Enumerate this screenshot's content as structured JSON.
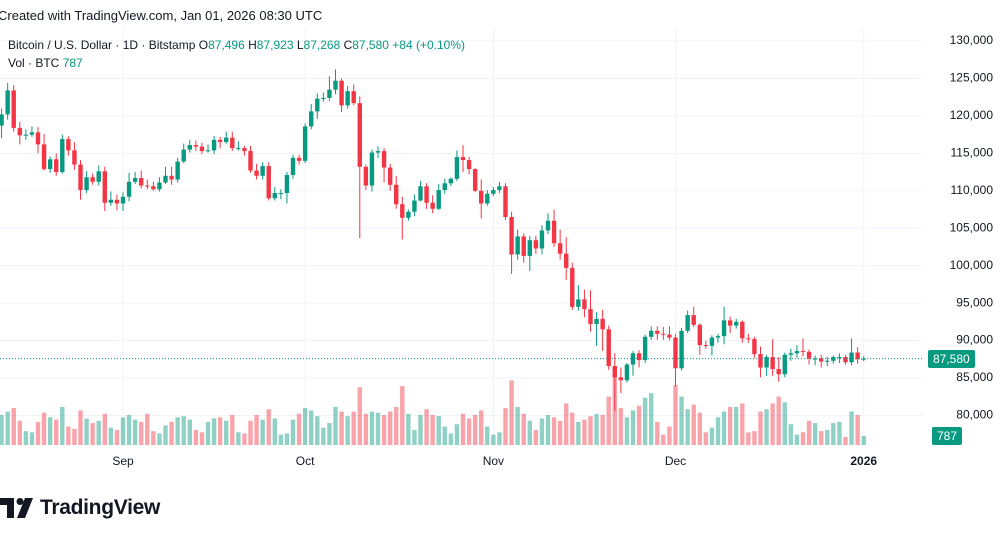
{
  "header": {
    "watermark": "Created with TradingView.com, Jan 01, 2026 08:30 UTC"
  },
  "logo": {
    "text": "TradingView"
  },
  "chart_data": {
    "type": "candlestick",
    "title": "Bitcoin / U.S. Dollar · 1D · Bitstamp",
    "ohlc": [
      {
        "prefix": "O",
        "value": 87496,
        "label": "87,496"
      },
      {
        "prefix": "H",
        "value": 87923,
        "label": "87,923"
      },
      {
        "prefix": "L",
        "value": 87268,
        "label": "87,268"
      },
      {
        "prefix": "C",
        "value": 87580,
        "label": "87,580"
      }
    ],
    "change": {
      "value": 84,
      "label": "+84"
    },
    "change_percent": {
      "value": 0.1,
      "label": "(+0.10%)"
    },
    "volume_label": "Vol · BTC",
    "last_volume": 787,
    "last_price": {
      "value": 87580,
      "label": "87,580"
    },
    "up_color": "#089981",
    "down_color": "#f23645",
    "grid": true,
    "open": [
      118700,
      120200,
      123400,
      118400,
      117400,
      117500,
      117800,
      116200,
      112900,
      114200,
      112500,
      116900,
      115400,
      113500,
      110100,
      111800,
      111200,
      112600,
      108400,
      108800,
      108300,
      109200,
      111200,
      111700,
      110700,
      110600,
      110200,
      111100,
      112000,
      111500,
      113900,
      115500,
      116100,
      115900,
      115300,
      115400,
      116800,
      116500,
      117100,
      115700,
      115700,
      115300,
      112700,
      112000,
      113300,
      109000,
      109700,
      109700,
      112100,
      114400,
      114000,
      118600,
      120600,
      122300,
      122400,
      123500,
      124700,
      121400,
      123300,
      121700,
      113200,
      110700,
      115100,
      115300,
      113100,
      110800,
      108200,
      106400,
      107200,
      108700,
      110600,
      108400,
      107600,
      110100,
      111000,
      111600,
      114500,
      114100,
      112900,
      110000,
      108300,
      109600,
      110100,
      110600,
      106500,
      101500,
      103900,
      101300,
      103400,
      102300,
      104700,
      106000,
      103000,
      101600,
      99700,
      94500,
      95500,
      94200,
      92200,
      92900,
      91500,
      86600,
      85100,
      84700,
      86800,
      88300,
      87400,
      90500,
      91300,
      90900,
      90800,
      90400,
      86300,
      91300,
      93400,
      92100,
      89400,
      89300,
      90400,
      90600,
      92700,
      92000,
      92500,
      90300,
      90200,
      88200,
      86400,
      87800,
      86200,
      85500,
      88100,
      88300,
      88600,
      88500,
      87600,
      87600,
      87200,
      87300,
      87800,
      87800,
      87100,
      88400,
      87496
    ],
    "high": [
      121000,
      124400,
      124100,
      119200,
      118200,
      118600,
      118500,
      117600,
      114600,
      115000,
      117500,
      117300,
      116500,
      114100,
      112600,
      112300,
      113400,
      113200,
      109900,
      109500,
      109800,
      112400,
      112500,
      112700,
      111500,
      111200,
      111800,
      113200,
      113200,
      114400,
      116300,
      116800,
      116700,
      116400,
      116200,
      117300,
      117200,
      117900,
      117900,
      116600,
      116000,
      116000,
      113600,
      113800,
      113800,
      110500,
      110200,
      112500,
      114800,
      114800,
      119000,
      121600,
      123000,
      123100,
      125300,
      126200,
      125000,
      124000,
      124200,
      122600,
      113500,
      115500,
      115900,
      115700,
      113600,
      112000,
      109200,
      107500,
      109500,
      111300,
      111000,
      109400,
      110900,
      111600,
      111800,
      115400,
      116100,
      114500,
      113000,
      111500,
      110100,
      110500,
      111200,
      111000,
      107200,
      104800,
      104300,
      104000,
      104000,
      105400,
      107000,
      107500,
      104800,
      103800,
      100400,
      97400,
      96800,
      96700,
      93800,
      94100,
      92000,
      88300,
      86400,
      87000,
      88600,
      88700,
      90800,
      91900,
      91900,
      91800,
      91900,
      90900,
      91700,
      94000,
      94500,
      92300,
      90000,
      90700,
      90900,
      94500,
      93200,
      92900,
      92700,
      90900,
      90500,
      89200,
      88100,
      90200,
      87800,
      88400,
      88900,
      89400,
      90300,
      88800,
      88000,
      88100,
      87800,
      88000,
      88300,
      88100,
      90300,
      89100,
      87923
    ],
    "low": [
      117000,
      119500,
      117900,
      116200,
      116800,
      117200,
      115000,
      112700,
      112400,
      112000,
      112300,
      114700,
      112800,
      108800,
      109700,
      110800,
      110700,
      107300,
      108000,
      107400,
      107300,
      108600,
      110900,
      110300,
      110200,
      110000,
      109900,
      110900,
      110800,
      111100,
      113700,
      115100,
      115300,
      114900,
      115100,
      114900,
      115700,
      116300,
      115300,
      115400,
      114700,
      112400,
      111500,
      111500,
      108700,
      108700,
      108900,
      108300,
      111600,
      113500,
      113700,
      118200,
      119600,
      121900,
      122000,
      122900,
      120500,
      121000,
      121400,
      103700,
      110100,
      109900,
      114400,
      111100,
      110000,
      107600,
      103500,
      106000,
      106600,
      108600,
      107600,
      107000,
      107400,
      109600,
      110600,
      111300,
      112500,
      112200,
      109800,
      106300,
      108000,
      109300,
      109700,
      106100,
      98900,
      100800,
      100400,
      99300,
      101600,
      101500,
      104200,
      102500,
      100800,
      98100,
      94100,
      94000,
      93100,
      91200,
      89300,
      88600,
      86100,
      80600,
      83000,
      84400,
      85300,
      86400,
      87000,
      90100,
      90100,
      90100,
      90000,
      83900,
      86000,
      91000,
      91800,
      88100,
      88900,
      88000,
      89700,
      89500,
      91000,
      91600,
      89700,
      89700,
      87700,
      85100,
      85300,
      85300,
      84500,
      85100,
      87300,
      87700,
      87900,
      86800,
      86700,
      86400,
      86600,
      86900,
      87000,
      86800,
      86700,
      86900,
      87268
    ],
    "close": [
      120200,
      123400,
      118400,
      117400,
      117500,
      117800,
      116200,
      112900,
      114200,
      112500,
      116900,
      115400,
      113500,
      110100,
      111800,
      111200,
      112600,
      108400,
      108800,
      108300,
      109200,
      111200,
      111700,
      110700,
      110600,
      110200,
      111100,
      112000,
      111500,
      113900,
      115500,
      116100,
      115900,
      115300,
      115400,
      116800,
      116500,
      117100,
      115700,
      115700,
      115300,
      112700,
      112000,
      113300,
      109000,
      109700,
      109700,
      112100,
      114400,
      114000,
      118600,
      120600,
      122300,
      122400,
      123500,
      124700,
      121400,
      123300,
      121700,
      113200,
      110700,
      115100,
      115300,
      113100,
      110800,
      108200,
      106400,
      107200,
      108700,
      110600,
      108400,
      107600,
      110100,
      111000,
      111600,
      114500,
      114100,
      112900,
      110000,
      108300,
      109600,
      110100,
      110600,
      106500,
      101500,
      103900,
      101300,
      103400,
      102300,
      104700,
      106000,
      103000,
      101600,
      99700,
      94500,
      95500,
      94200,
      92200,
      92900,
      91500,
      86600,
      85100,
      84700,
      86800,
      88300,
      87400,
      90500,
      91300,
      90900,
      90800,
      90400,
      86300,
      91300,
      93400,
      92100,
      89400,
      89300,
      90400,
      90600,
      92700,
      92000,
      92500,
      90300,
      90200,
      88200,
      86400,
      87800,
      86200,
      85500,
      88100,
      88300,
      88600,
      88500,
      87600,
      87600,
      87200,
      87300,
      87800,
      87800,
      87100,
      88400,
      87496,
      87580
    ],
    "volume": [
      2600,
      2900,
      3200,
      2100,
      1200,
      1100,
      2000,
      2800,
      2400,
      2200,
      3300,
      1600,
      1400,
      3000,
      2300,
      1900,
      2100,
      2700,
      1500,
      1300,
      2400,
      2600,
      2200,
      2000,
      2700,
      1200,
      1000,
      1700,
      2000,
      2400,
      2500,
      2200,
      1300,
      1100,
      2000,
      2300,
      2400,
      2100,
      2600,
      1100,
      1000,
      2100,
      2600,
      2200,
      3100,
      2300,
      900,
      1000,
      2200,
      2700,
      3200,
      3000,
      2500,
      1500,
      1900,
      3300,
      2900,
      2500,
      2900,
      5000,
      2700,
      2900,
      2800,
      2600,
      2900,
      3300,
      5100,
      2700,
      1300,
      2600,
      3100,
      2600,
      2500,
      1600,
      1000,
      1800,
      2700,
      2300,
      2600,
      3000,
      1600,
      900,
      1100,
      3200,
      5600,
      3300,
      2700,
      2100,
      1300,
      2300,
      2600,
      2400,
      2100,
      3600,
      2800,
      2000,
      2200,
      2500,
      2700,
      2600,
      4200,
      6500,
      3200,
      2400,
      3000,
      3400,
      4100,
      4500,
      2000,
      900,
      1600,
      5200,
      4200,
      3100,
      3500,
      2800,
      1100,
      1500,
      2400,
      2900,
      3300,
      3300,
      3600,
      1100,
      1200,
      2900,
      3100,
      3600,
      4200,
      3700,
      1800,
      900,
      1100,
      2100,
      1900,
      1200,
      1300,
      1900,
      2000,
      700,
      2900,
      2600,
      787
    ],
    "xlim": [
      -0.26,
      151.6
    ],
    "xticks": [
      {
        "value": 20,
        "label": "Sep"
      },
      {
        "value": 50,
        "label": "Oct"
      },
      {
        "value": 81,
        "label": "Nov"
      },
      {
        "value": 111,
        "label": "Dec"
      },
      {
        "value": 142,
        "label": "2026"
      }
    ],
    "ylim": [
      76054,
      131736
    ],
    "yticks": [
      {
        "value": 80000,
        "label": "80,000"
      },
      {
        "value": 85000,
        "label": "85,000"
      },
      {
        "value": 90000,
        "label": "90,000"
      },
      {
        "value": 95000,
        "label": "95,000"
      },
      {
        "value": 100000,
        "label": "100,000"
      },
      {
        "value": 105000,
        "label": "105,000"
      },
      {
        "value": 110000,
        "label": "110,000"
      },
      {
        "value": 115000,
        "label": "115,000"
      },
      {
        "value": 120000,
        "label": "120,000"
      },
      {
        "value": 125000,
        "label": "125,000"
      },
      {
        "value": 130000,
        "label": "130,000"
      }
    ]
  }
}
